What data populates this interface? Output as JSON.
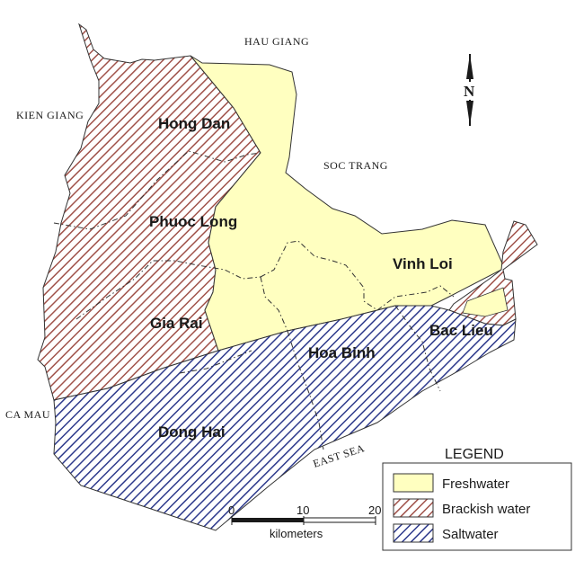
{
  "districts": {
    "hong_dan": "Hong Dan",
    "phuoc_long": "Phuoc Long",
    "gia_rai": "Gia Rai",
    "vinh_loi": "Vinh Loi",
    "bac_lieu": "Bac Lieu",
    "hoa_binh": "Hoa Binh",
    "dong_hai": "Dong Hai"
  },
  "surrounding": {
    "hau_giang": "HAU GIANG",
    "kien_giang": "KIEN GIANG",
    "soc_trang": "SOC TRANG",
    "ca_mau": "CA MAU",
    "east_sea": "EAST SEA"
  },
  "north_label": "N",
  "legend": {
    "title": "LEGEND",
    "items": [
      {
        "label": "Freshwater",
        "color": "#ffffc0",
        "pattern": "none"
      },
      {
        "label": "Brackish water",
        "color": "#a0524a",
        "pattern": "diagonal-hatch"
      },
      {
        "label": "Saltwater",
        "color": "#2e3a8c",
        "pattern": "diagonal-hatch"
      }
    ]
  },
  "scale_bar": {
    "ticks": [
      "0",
      "10",
      "20"
    ],
    "unit": "kilometers"
  },
  "colors": {
    "freshwater": "#ffffc0",
    "brackish_stripe": "#a0524a",
    "saltwater_stripe": "#2e3a8c",
    "outline": "#333333"
  }
}
